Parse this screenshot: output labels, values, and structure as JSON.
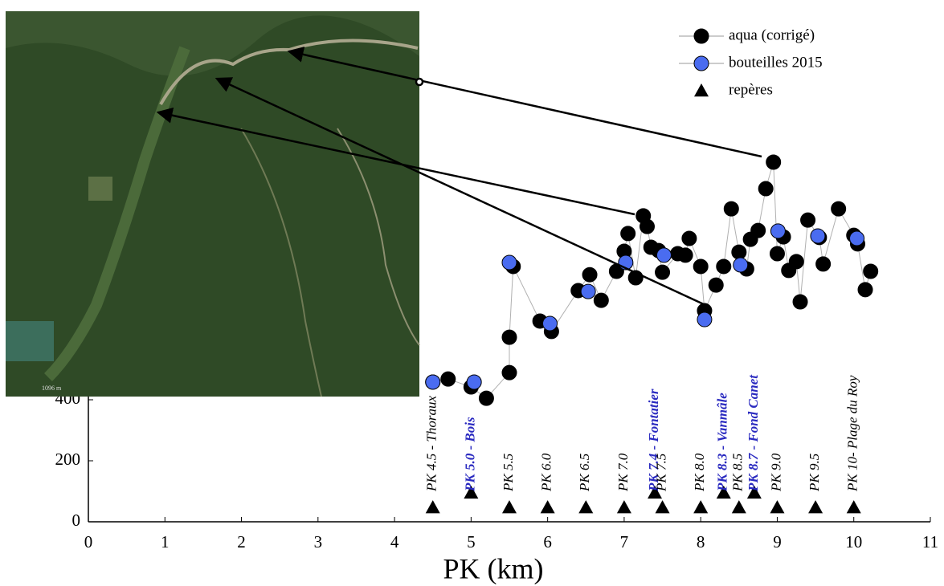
{
  "chart_data": {
    "type": "scatter",
    "xlabel": "PK  (km)",
    "xlim": [
      0,
      11
    ],
    "xticks": [
      0,
      1,
      2,
      3,
      4,
      5,
      6,
      7,
      8,
      9,
      10,
      11
    ],
    "ylim": [
      0,
      1600
    ],
    "yticks": [
      0,
      200,
      400
    ],
    "legend": "top-right",
    "series": [
      {
        "name": "aqua (corrigé)",
        "color": "#000000",
        "line_color": "#b0b0b0",
        "x": [
          4.5,
          4.7,
          5.0,
          5.2,
          5.5,
          5.5,
          5.55,
          5.9,
          6.05,
          6.4,
          6.55,
          6.7,
          6.9,
          7.0,
          7.05,
          7.15,
          7.25,
          7.3,
          7.35,
          7.45,
          7.5,
          7.7,
          7.8,
          7.85,
          8.0,
          8.05,
          8.2,
          8.3,
          8.4,
          8.5,
          8.6,
          8.65,
          8.75,
          8.85,
          8.95,
          9.0,
          9.08,
          9.15,
          9.25,
          9.3,
          9.4,
          9.55,
          9.6,
          9.8,
          10.0,
          10.05,
          10.15,
          10.22
        ],
        "values": [
          458,
          468,
          442,
          405,
          489,
          605,
          837,
          658,
          624,
          758,
          810,
          726,
          821,
          887,
          945,
          800,
          1003,
          968,
          900,
          889,
          818,
          879,
          874,
          929,
          837,
          692,
          776,
          837,
          1026,
          884,
          829,
          926,
          955,
          1092,
          1179,
          879,
          934,
          824,
          853,
          721,
          989,
          932,
          845,
          1026,
          939,
          911,
          761,
          821
        ]
      },
      {
        "name": "bouteilles 2015",
        "color": "#4a6cf0",
        "x": [
          4.5,
          5.04,
          5.5,
          6.03,
          6.53,
          7.02,
          7.52,
          8.05,
          8.52,
          9.01,
          9.53,
          10.04
        ],
        "values": [
          458,
          458,
          850,
          650,
          755,
          850,
          874,
          663,
          842,
          953,
          937,
          929
        ]
      },
      {
        "name": "repères",
        "color": "#000000",
        "marker": "triangle",
        "x": [
          4.5,
          5.0,
          5.5,
          6.0,
          6.5,
          7.0,
          7.4,
          7.5,
          8.0,
          8.3,
          8.5,
          8.7,
          9.0,
          9.5,
          10.0
        ],
        "values": [
          47,
          95,
          47,
          47,
          47,
          47,
          95,
          47,
          47,
          95,
          47,
          95,
          47,
          47,
          47
        ],
        "labels": [
          "PK 4.5 - Thoraux",
          "PK 5.0 - Bois",
          "PK 5.5",
          "PK 6.0",
          "PK 6.5",
          "PK 7.0",
          "PK 7.4 - Fontatier",
          "PK 7.5",
          "PK 8.0",
          "PK 8.3 - Vanmâle",
          "PK 8.5",
          "PK 8.7 - Fond Canet",
          "PK 9.0",
          "PK 9.5",
          "PK 10- Plage du Roy"
        ],
        "label_colors": [
          "#000000",
          "#2a2ac0",
          "#000000",
          "#000000",
          "#000000",
          "#000000",
          "#2a2ac0",
          "#000000",
          "#000000",
          "#2a2ac0",
          "#000000",
          "#2a2ac0",
          "#000000",
          "#000000",
          "#000000"
        ]
      }
    ],
    "image": {
      "scale_label": "1096 m"
    }
  }
}
